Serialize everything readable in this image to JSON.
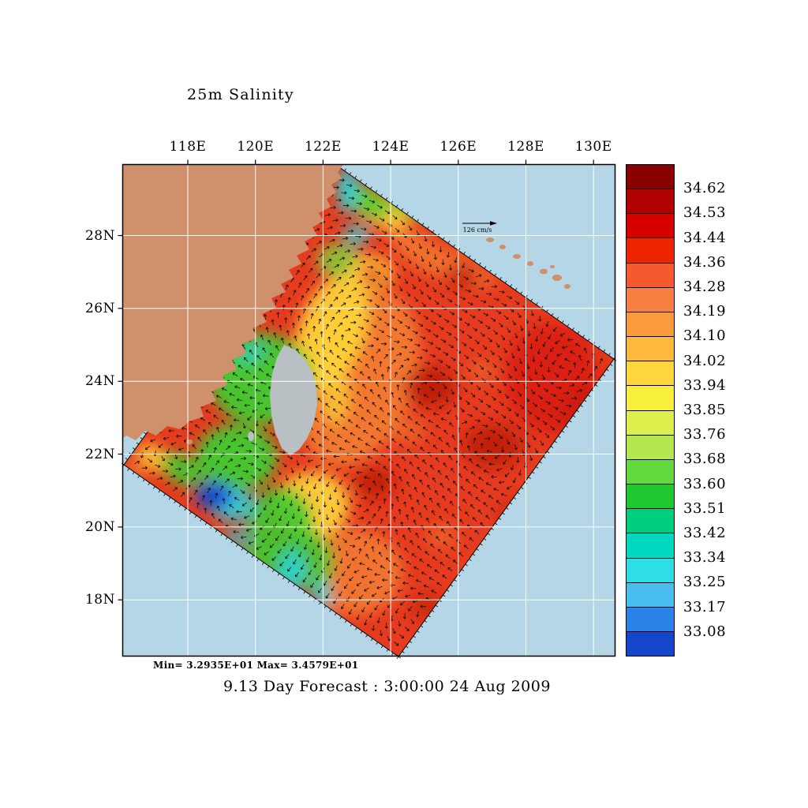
{
  "title": "25m Salinity",
  "caption": "9.13 Day Forecast :  3:00:00  24 Aug 2009",
  "stats_line": "Min=  3.2935E+01  Max=  3.4579E+01",
  "reference_vector": {
    "label": "126 cm/s"
  },
  "axes": {
    "top_labels": [
      "118E",
      "120E",
      "122E",
      "124E",
      "126E",
      "128E",
      "130E"
    ],
    "left_labels": [
      "28N",
      "26N",
      "24N",
      "22N",
      "20N",
      "18N"
    ]
  },
  "colorbar": {
    "labels": [
      "34.62",
      "34.53",
      "34.44",
      "34.36",
      "34.28",
      "34.19",
      "34.10",
      "34.02",
      "33.94",
      "33.85",
      "33.76",
      "33.68",
      "33.60",
      "33.51",
      "33.42",
      "33.34",
      "33.25",
      "33.17",
      "33.08"
    ],
    "colors": [
      "#8a0000",
      "#b10000",
      "#d60000",
      "#ee2400",
      "#f45a2e",
      "#f87f42",
      "#fb9a3c",
      "#fdb93c",
      "#fdd53c",
      "#f8ee3c",
      "#dff04e",
      "#b4e84e",
      "#62d93c",
      "#1fc82e",
      "#00cd7d",
      "#00d8c0",
      "#2edee4",
      "#49bdf0",
      "#2b82e8",
      "#1446cc"
    ]
  },
  "chart_data": {
    "type": "heatmap",
    "title": "25m Salinity",
    "variable": "sea water salinity at 25 m depth",
    "overlay": "ocean current vectors on rotated model domain",
    "reference_vector_label": "126 cm/s",
    "field_min": 32.935,
    "field_max": 34.579,
    "colorbar_levels": [
      33.08,
      33.17,
      33.25,
      33.34,
      33.42,
      33.51,
      33.6,
      33.68,
      33.76,
      33.85,
      33.94,
      34.02,
      34.1,
      34.19,
      34.28,
      34.36,
      34.44,
      34.53,
      34.62
    ],
    "x_axis": {
      "ticks": [
        "118E",
        "120E",
        "122E",
        "124E",
        "126E",
        "128E",
        "130E"
      ],
      "lon_range": [
        116.1,
        130.7
      ]
    },
    "y_axis": {
      "ticks": [
        "28N",
        "26N",
        "24N",
        "22N",
        "20N",
        "18N"
      ],
      "lat_range": [
        16.4,
        30.0
      ]
    },
    "annotations": {
      "min_max_text": "Min=  3.2935E+01  Max=  3.4579E+01",
      "caption": "9.13 Day Forecast :  3:00:00  24 Aug 2009"
    },
    "visual_summary": {
      "high_salinity_red_zone": "southeast offshore half approx 34.2-34.5 with mesoscale eddies",
      "coastal_green_cyan_zone": "Taiwan Strait and China coastal band approx 33.4-33.9",
      "low_salinity_blue_core": "approx 33.1 centered near 117.5E 21N"
    }
  }
}
